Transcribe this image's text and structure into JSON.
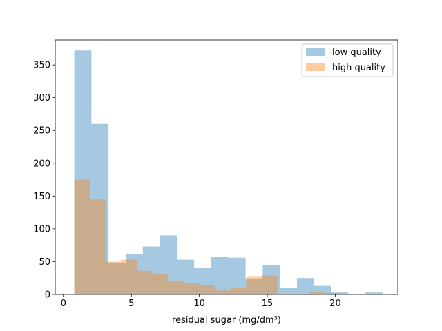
{
  "chart_data": {
    "type": "bar",
    "title": "",
    "xlabel": "residual sugar (mg/dm³)",
    "ylabel": "",
    "xlim": [
      -0.6,
      24.6
    ],
    "ylim": [
      0,
      388
    ],
    "xticks": [
      0,
      5,
      10,
      15,
      20
    ],
    "yticks": [
      0,
      50,
      100,
      150,
      200,
      250,
      300,
      350
    ],
    "grid": false,
    "legend_position": "top-right",
    "series": [
      {
        "name": "low quality",
        "color": "#1f77b4",
        "opacity": 0.4,
        "bin_edges": [
          0.8,
          2.06,
          3.32,
          4.58,
          5.84,
          7.1,
          8.36,
          9.62,
          10.88,
          12.14,
          13.4,
          14.66,
          15.92,
          17.18,
          18.44,
          19.7,
          20.96,
          22.22,
          23.48
        ],
        "counts": [
          372,
          260,
          48,
          62,
          73,
          90,
          53,
          41,
          57,
          56,
          24,
          45,
          10,
          25,
          13,
          3,
          0,
          3
        ]
      },
      {
        "name": "high quality",
        "color": "#ff7f0e",
        "opacity": 0.4,
        "bin_edges": [
          0.8,
          1.95,
          3.1,
          4.25,
          5.4,
          6.55,
          7.7,
          8.85,
          10.0,
          11.15,
          12.3,
          13.45,
          14.6,
          15.75,
          16.9,
          18.05,
          19.2,
          20.35
        ],
        "counts": [
          175,
          145,
          50,
          53,
          36,
          31,
          21,
          17,
          14,
          6,
          10,
          28,
          29,
          0,
          0,
          4,
          2
        ]
      }
    ]
  }
}
